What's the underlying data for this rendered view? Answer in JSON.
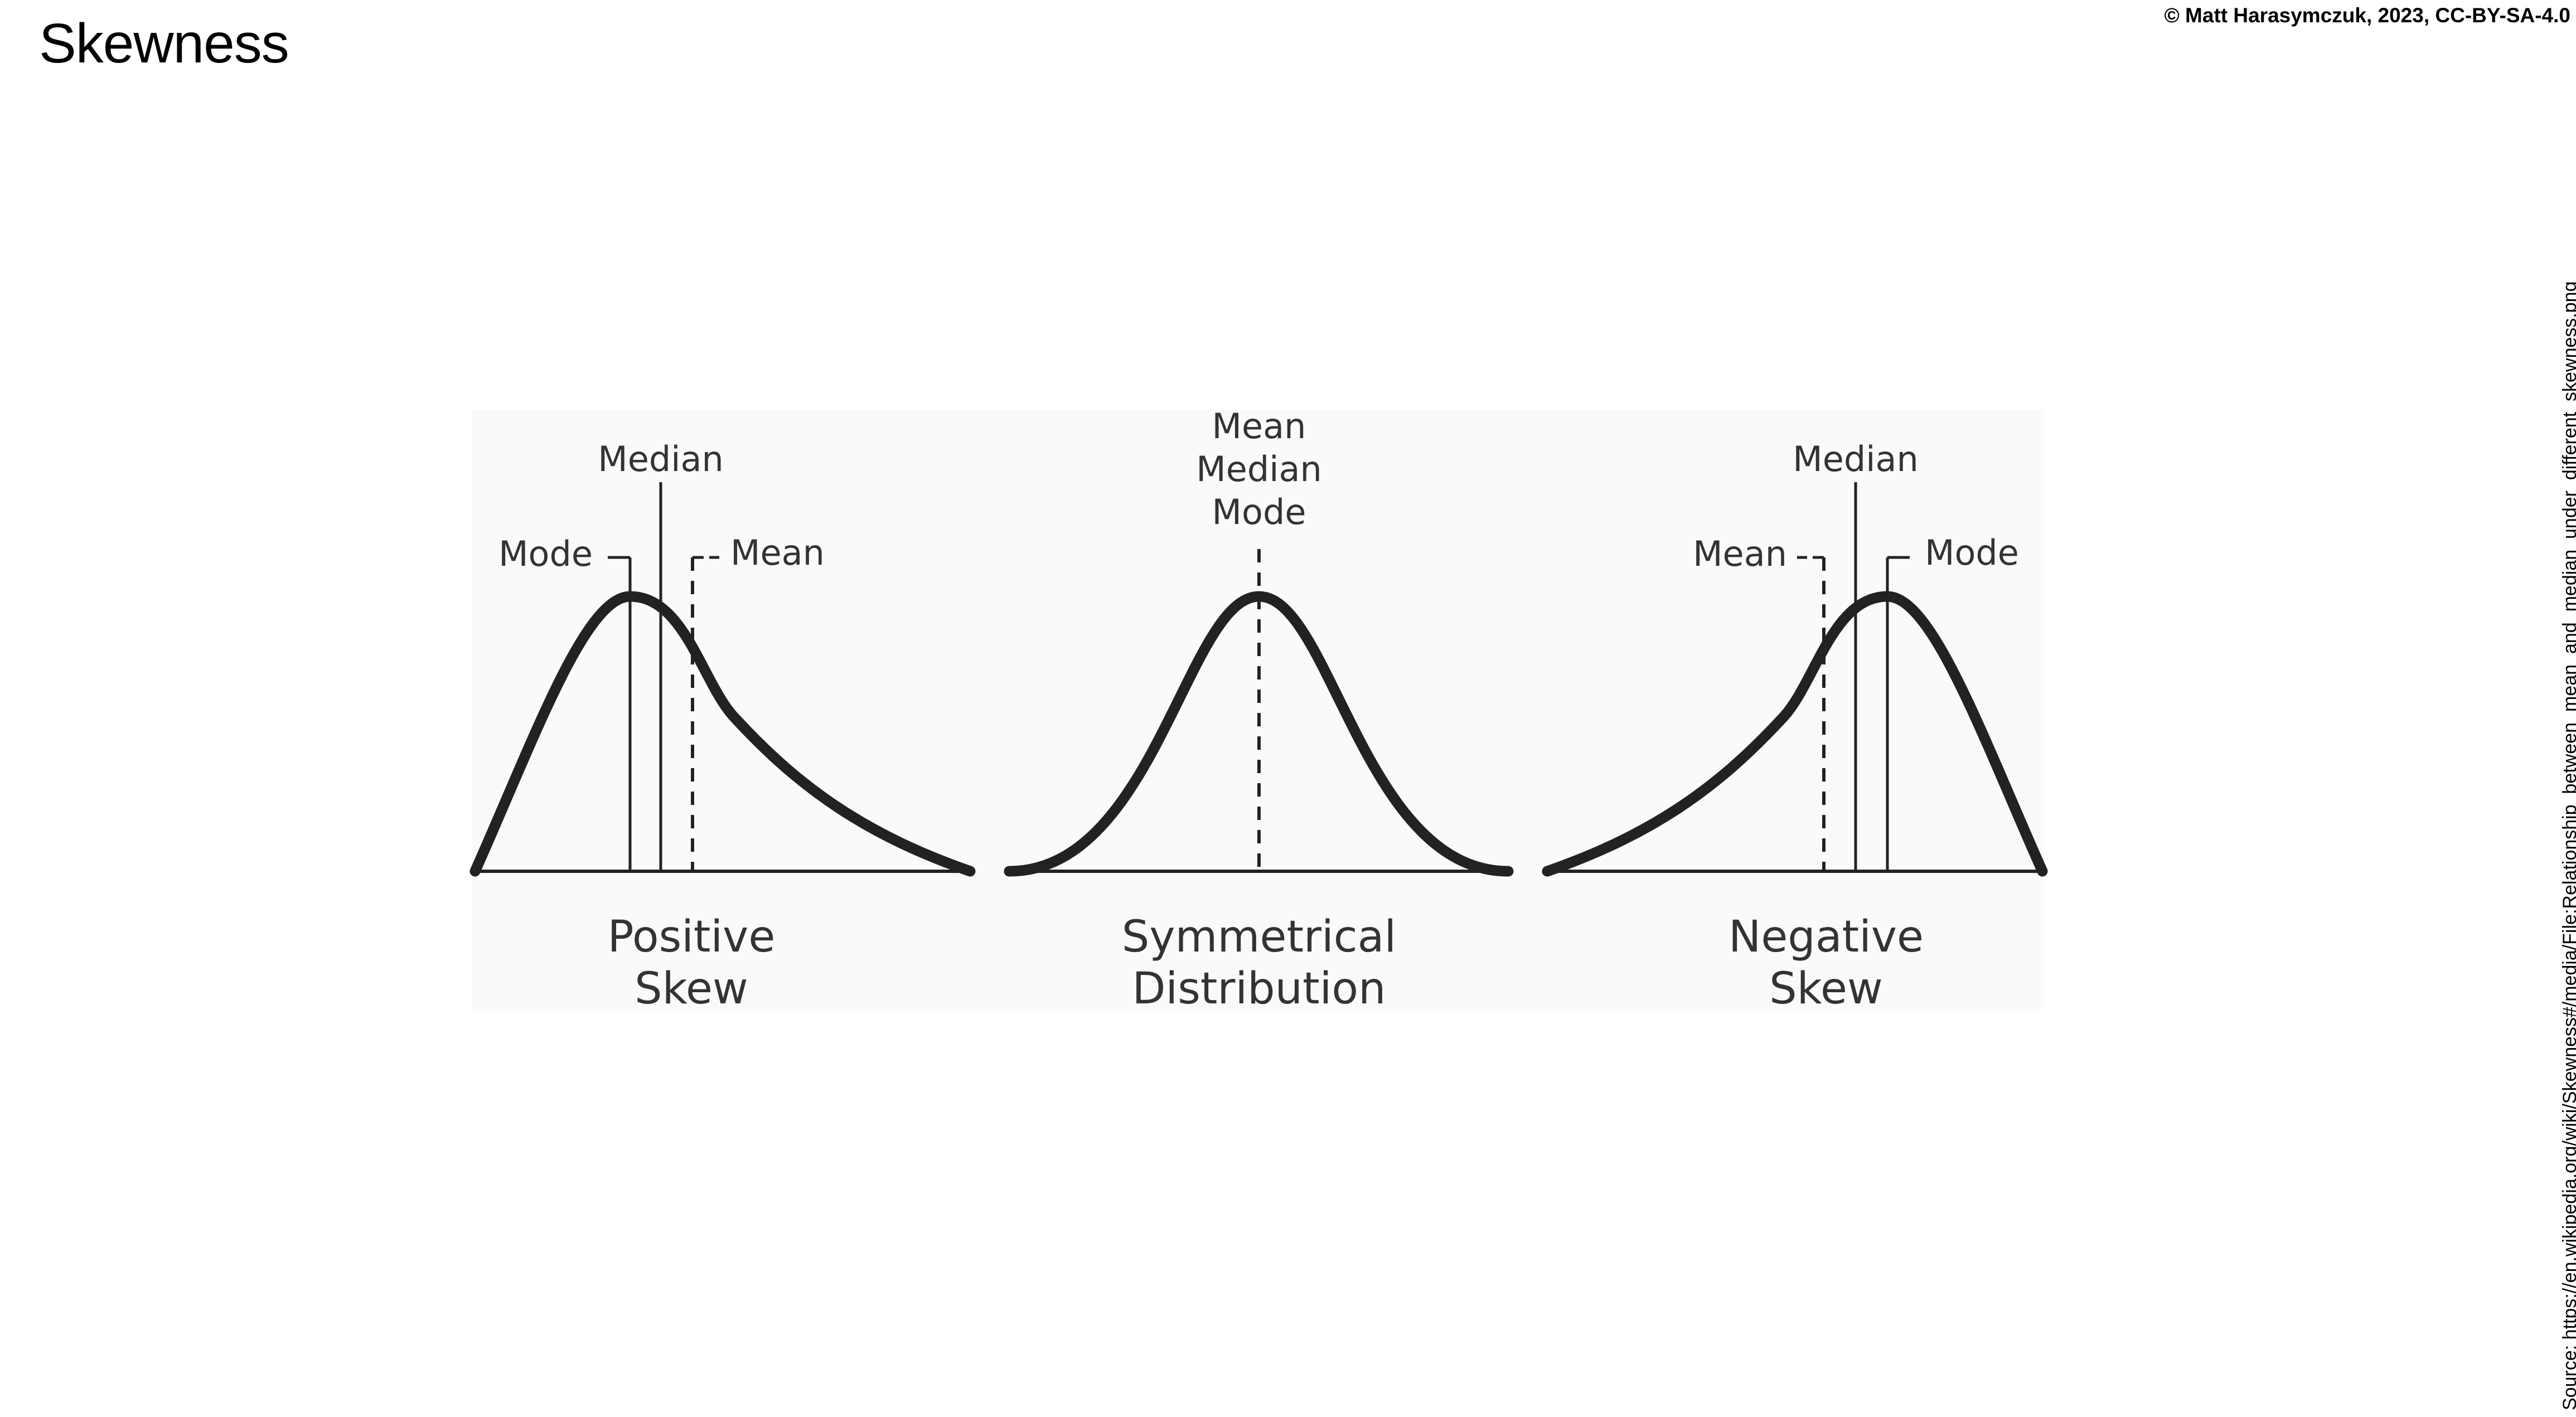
{
  "title": "Skewness",
  "credit": "© Matt Harasymczuk, 2023, CC-BY-SA-4.0",
  "source": "Source: https://en.wikipedia.org/wiki/Skewness#/media/File:Relationship_between_mean_and_median_under_different_skewness.png",
  "panels": {
    "positive": {
      "median": "Median",
      "mode": "Mode",
      "mean": "Mean",
      "caption_line1": "Positive",
      "caption_line2": "Skew"
    },
    "symmetrical": {
      "mean": "Mean",
      "median": "Median",
      "mode": "Mode",
      "caption_line1": "Symmetrical",
      "caption_line2": "Distribution"
    },
    "negative": {
      "median": "Median",
      "mean": "Mean",
      "mode": "Mode",
      "caption_line1": "Negative",
      "caption_line2": "Skew"
    }
  }
}
